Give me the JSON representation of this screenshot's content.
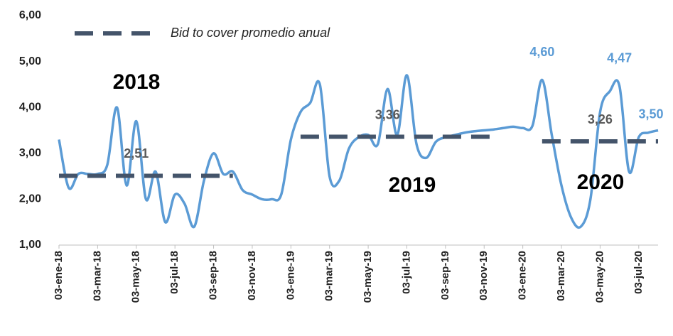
{
  "chart_data": {
    "type": "line",
    "categories": [
      "03-ene-18",
      null,
      null,
      null,
      "03-mar-18",
      null,
      null,
      null,
      "03-may-18",
      null,
      null,
      null,
      "03-jul-18",
      null,
      null,
      null,
      "03-sep-18",
      null,
      null,
      null,
      "03-nov-18",
      null,
      null,
      null,
      "03-ene-19",
      null,
      null,
      null,
      "03-mar-19",
      null,
      null,
      null,
      "03-may-19",
      null,
      null,
      null,
      "03-jul-19",
      null,
      null,
      null,
      "03-sep-19",
      null,
      null,
      null,
      "03-nov-19",
      null,
      null,
      null,
      "03-ene-20",
      null,
      null,
      null,
      "03-mar-20",
      null,
      null,
      null,
      "03-may-20",
      null,
      null,
      null,
      "03-jul-20",
      null,
      null
    ],
    "series": [
      {
        "color": "#5b9bd5",
        "values": [
          3.3,
          2.25,
          2.55,
          2.55,
          2.55,
          2.75,
          4.0,
          2.3,
          3.7,
          2.0,
          2.6,
          1.5,
          2.1,
          1.9,
          1.4,
          2.4,
          3.0,
          2.55,
          2.6,
          2.2,
          2.1,
          2.0,
          2.0,
          2.1,
          3.3,
          3.9,
          4.1,
          4.5,
          2.5,
          2.4,
          3.1,
          3.35,
          3.4,
          3.2,
          4.4,
          3.4,
          4.7,
          3.2,
          2.9,
          3.25,
          3.35,
          3.4,
          3.45,
          3.48,
          3.5,
          3.52,
          3.55,
          3.58,
          3.55,
          3.6,
          4.6,
          3.4,
          2.3,
          1.6,
          1.4,
          2.0,
          3.9,
          4.35,
          4.47,
          2.6,
          3.35,
          3.45,
          3.5
        ],
        "value_labels": [
          null,
          null,
          null,
          null,
          null,
          null,
          null,
          null,
          null,
          null,
          null,
          null,
          null,
          null,
          null,
          null,
          null,
          null,
          null,
          null,
          null,
          null,
          null,
          null,
          null,
          null,
          null,
          null,
          null,
          null,
          null,
          null,
          null,
          null,
          null,
          null,
          null,
          null,
          null,
          null,
          null,
          null,
          null,
          null,
          null,
          null,
          null,
          null,
          null,
          null,
          "4,60",
          null,
          null,
          null,
          null,
          null,
          null,
          null,
          "4,47",
          null,
          null,
          null,
          "3,50"
        ]
      },
      {
        "name": "Bid to cover promedio anual",
        "color": "#44546a",
        "dashed": true,
        "values": [
          2.51,
          2.51,
          2.51,
          2.51,
          2.51,
          2.51,
          2.51,
          2.51,
          2.51,
          2.51,
          2.51,
          2.51,
          2.51,
          2.51,
          2.51,
          2.51,
          2.51,
          2.51,
          2.51,
          null,
          null,
          null,
          null,
          null,
          null,
          3.36,
          3.36,
          3.36,
          3.36,
          3.36,
          3.36,
          3.36,
          3.36,
          3.36,
          3.36,
          3.36,
          3.36,
          3.36,
          3.36,
          3.36,
          3.36,
          3.36,
          3.36,
          3.36,
          3.36,
          3.36,
          null,
          null,
          null,
          null,
          3.26,
          3.26,
          3.26,
          3.26,
          3.26,
          3.26,
          3.26,
          3.26,
          3.26,
          3.26,
          3.26,
          3.26,
          3.26
        ],
        "value_labels": [
          null,
          null,
          null,
          null,
          null,
          null,
          null,
          null,
          "2,51",
          null,
          null,
          null,
          null,
          null,
          null,
          null,
          null,
          null,
          null,
          null,
          null,
          null,
          null,
          null,
          null,
          null,
          null,
          null,
          null,
          null,
          null,
          null,
          null,
          null,
          "3,36",
          null,
          null,
          null,
          null,
          null,
          null,
          null,
          null,
          null,
          null,
          null,
          null,
          null,
          null,
          null,
          null,
          null,
          null,
          null,
          null,
          null,
          "3,26",
          null,
          null,
          null,
          null,
          null,
          null
        ]
      }
    ],
    "annotations": [
      "2018",
      "2019",
      "2020"
    ],
    "ylim": [
      1,
      6
    ],
    "yticks": [
      {
        "value": 1,
        "label": "1,00"
      },
      {
        "value": 2,
        "label": "2,00"
      },
      {
        "value": 3,
        "label": "3,00"
      },
      {
        "value": 4,
        "label": "4,00"
      },
      {
        "value": 5,
        "label": "5,00"
      },
      {
        "value": 6,
        "label": "6,00"
      }
    ],
    "legend": "top-left"
  }
}
